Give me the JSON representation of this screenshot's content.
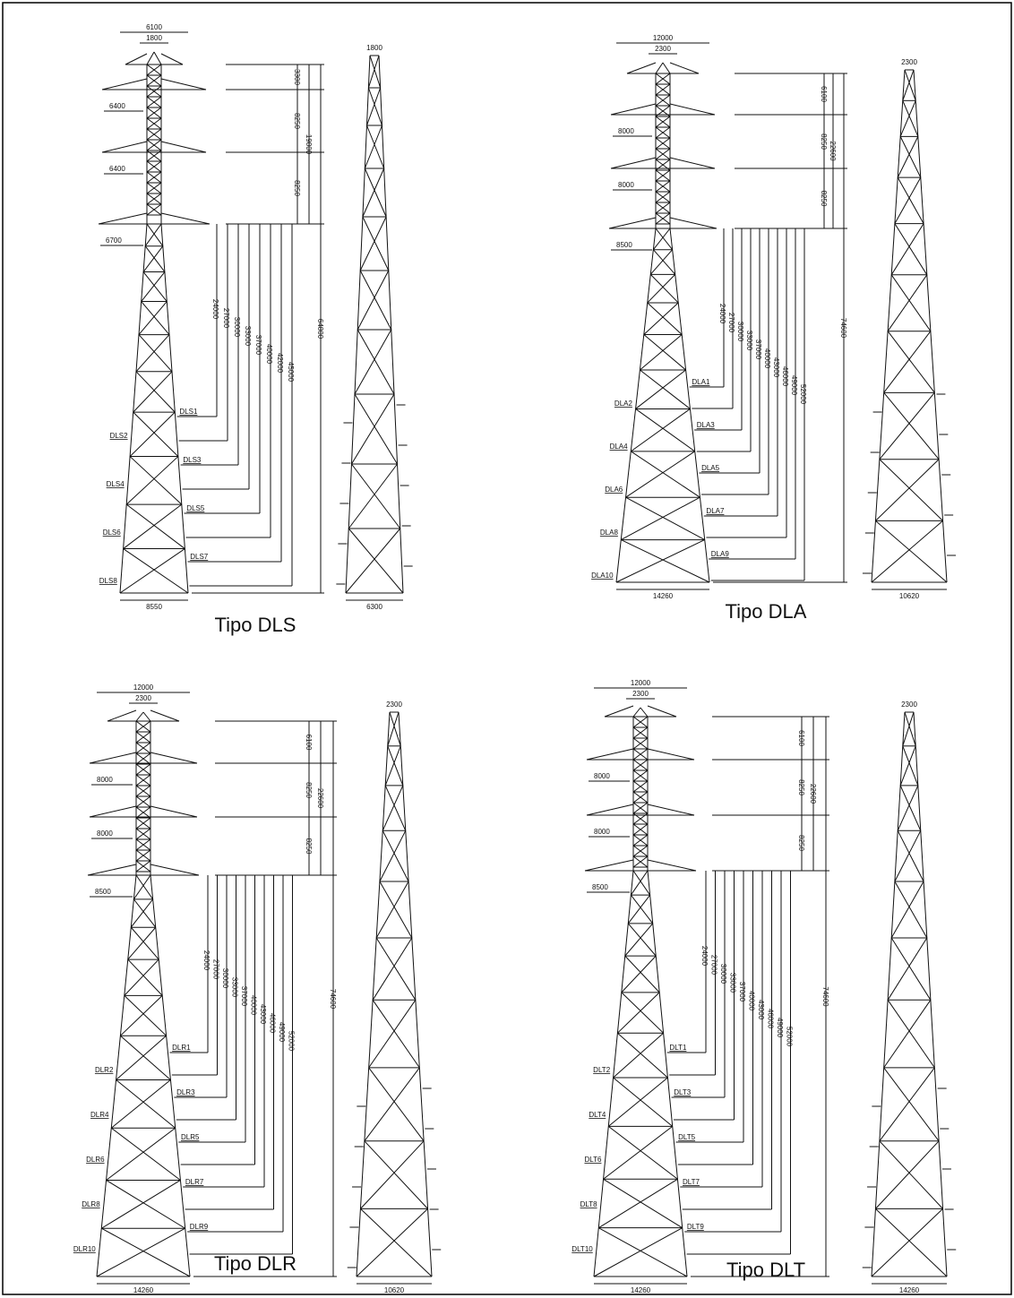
{
  "panels": [
    {
      "caption": "Tipo DLS",
      "top_width": "6100",
      "shaft_width": "1800",
      "arm_widths": [
        "6400",
        "6400",
        "6700"
      ],
      "spacings": [
        "3300",
        "8250",
        "8250"
      ],
      "top_height": "19800",
      "total_height": "64800",
      "extensions": [
        "24000",
        "27000",
        "30000",
        "33000",
        "37000",
        "40000",
        "42000",
        "45000"
      ],
      "legs": [
        "DLS1",
        "DLS2",
        "DLS3",
        "DLS4",
        "DLS5",
        "DLS6",
        "DLS7",
        "DLS8"
      ],
      "base_width": "8550",
      "side_top": "1800",
      "side_base": "6300"
    },
    {
      "caption": "Tipo DLA",
      "top_width": "12000",
      "shaft_width": "2300",
      "arm_widths": [
        "8000",
        "8000",
        "8500"
      ],
      "spacings": [
        "6100",
        "8250",
        "8250"
      ],
      "top_height": "22600",
      "total_height": "74600",
      "extensions": [
        "24000",
        "27000",
        "30000",
        "33000",
        "37000",
        "40000",
        "43000",
        "46000",
        "49000",
        "52000"
      ],
      "legs": [
        "DLA1",
        "DLA2",
        "DLA3",
        "DLA4",
        "DLA5",
        "DLA6",
        "DLA7",
        "DLA8",
        "DLA9",
        "DLA10"
      ],
      "base_width": "14260",
      "side_top": "2300",
      "side_base": "10620"
    },
    {
      "caption": "Tipo DLR",
      "top_width": "12000",
      "shaft_width": "2300",
      "arm_widths": [
        "8000",
        "8000",
        "8500"
      ],
      "spacings": [
        "6100",
        "8250",
        "8250"
      ],
      "top_height": "22600",
      "total_height": "74600",
      "extensions": [
        "24000",
        "27000",
        "30000",
        "33000",
        "37000",
        "40000",
        "43000",
        "46000",
        "49000",
        "52000"
      ],
      "legs": [
        "DLR1",
        "DLR2",
        "DLR3",
        "DLR4",
        "DLR5",
        "DLR6",
        "DLR7",
        "DLR8",
        "DLR9",
        "DLR10"
      ],
      "base_width": "14260",
      "side_top": "2300",
      "side_base": "10620"
    },
    {
      "caption": "Tipo DLT",
      "top_width": "12000",
      "shaft_width": "2300",
      "arm_widths": [
        "8000",
        "8000",
        "8500"
      ],
      "spacings": [
        "6100",
        "8250",
        "8250"
      ],
      "top_height": "22600",
      "total_height": "74600",
      "extensions": [
        "24000",
        "27000",
        "30000",
        "33000",
        "37000",
        "40000",
        "43000",
        "46000",
        "49000",
        "52000"
      ],
      "legs": [
        "DLT1",
        "DLT2",
        "DLT3",
        "DLT4",
        "DLT5",
        "DLT6",
        "DLT7",
        "DLT8",
        "DLT9",
        "DLT10"
      ],
      "base_width": "14260",
      "side_top": "2300",
      "side_base": "14260"
    }
  ]
}
